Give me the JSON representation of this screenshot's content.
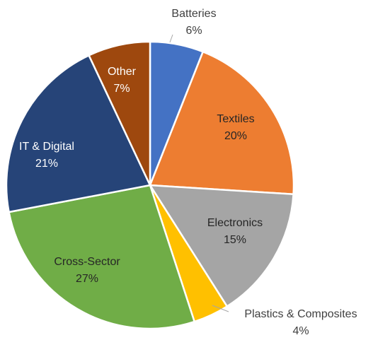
{
  "chart_data": {
    "type": "pie",
    "title": "",
    "slices": [
      {
        "label": "Batteries",
        "value": 6,
        "display": "6%",
        "color": "#4472c4"
      },
      {
        "label": "Textiles",
        "value": 20,
        "display": "20%",
        "color": "#ed7d31"
      },
      {
        "label": "Electronics",
        "value": 15,
        "display": "15%",
        "color": "#a5a5a5"
      },
      {
        "label": "Plastics & Composites",
        "value": 4,
        "display": "4%",
        "color": "#ffc000"
      },
      {
        "label": "Cross-Sector",
        "value": 27,
        "display": "27%",
        "color": "#70ad47"
      },
      {
        "label": "IT & Digital",
        "value": 21,
        "display": "21%",
        "color": "#264478"
      },
      {
        "label": "Other",
        "value": 7,
        "display": "7%",
        "color": "#9e480e"
      }
    ],
    "label_text_colors": {
      "inside_light": "#ffffff",
      "inside_dark": "#262626",
      "outside": "#404040"
    }
  }
}
